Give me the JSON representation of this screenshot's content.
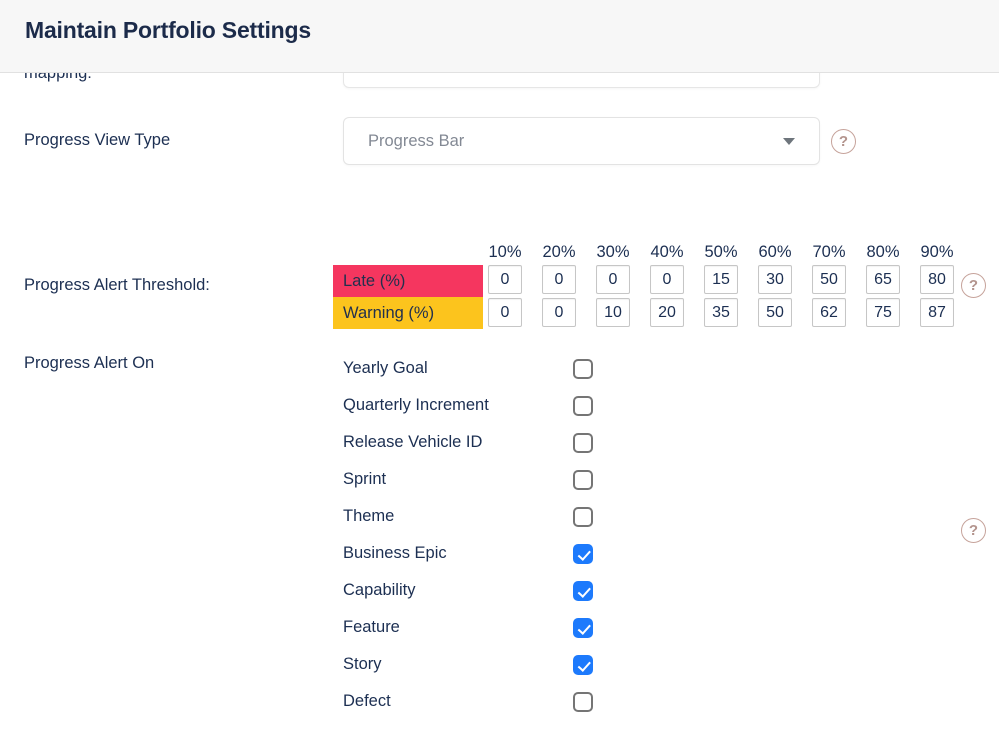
{
  "page": {
    "title": "Maintain Portfolio Settings"
  },
  "icons": {
    "help_glyph": "?"
  },
  "form": {
    "mapping_row": {
      "label": "mapping:",
      "value": "",
      "placeholder": ""
    },
    "view_type": {
      "label": "Progress View Type",
      "selected_value": "Progress Bar"
    },
    "threshold": {
      "label": "Progress Alert Threshold:",
      "columns": [
        "10%",
        "20%",
        "30%",
        "40%",
        "50%",
        "60%",
        "70%",
        "80%",
        "90%"
      ],
      "rows": [
        {
          "name": "Late (%)",
          "color": "#F5365F",
          "values": [
            "0",
            "0",
            "0",
            "0",
            "15",
            "30",
            "50",
            "65",
            "80"
          ]
        },
        {
          "name": "Warning (%)",
          "color": "#FCC41D",
          "values": [
            "0",
            "0",
            "10",
            "20",
            "35",
            "50",
            "62",
            "75",
            "87"
          ]
        }
      ]
    },
    "alert_on": {
      "label": "Progress Alert On",
      "items": [
        {
          "label": "Yearly Goal",
          "checked": false
        },
        {
          "label": "Quarterly Increment",
          "checked": false
        },
        {
          "label": "Release Vehicle ID",
          "checked": false
        },
        {
          "label": "Sprint",
          "checked": false
        },
        {
          "label": "Theme",
          "checked": false
        },
        {
          "label": "Business Epic",
          "checked": true
        },
        {
          "label": "Capability",
          "checked": true
        },
        {
          "label": "Feature",
          "checked": true
        },
        {
          "label": "Story",
          "checked": true
        },
        {
          "label": "Defect",
          "checked": false
        }
      ]
    }
  },
  "colors": {
    "late_row": "#F5365F",
    "warning_row": "#FCC41D",
    "checkbox_checked": "#1D7AFC",
    "text_navy": "#1C2F52",
    "header_bg": "#F7F7F7",
    "help_icon": "#C6A39B"
  }
}
